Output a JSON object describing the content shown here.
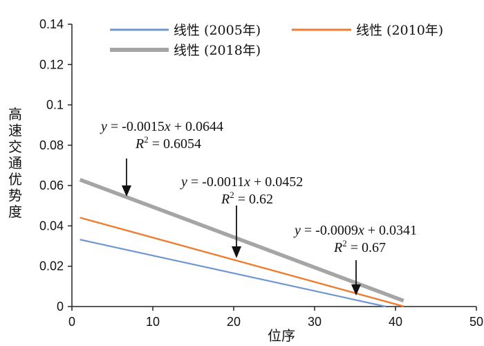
{
  "chart_data": {
    "type": "line",
    "xlabel": "位序",
    "ylabel": "高速交通优势度",
    "xlim": [
      0,
      50
    ],
    "ylim": [
      0,
      0.14
    ],
    "x_ticks": [
      "0",
      "10",
      "20",
      "30",
      "40",
      "50"
    ],
    "y_ticks": [
      "0",
      "0.02",
      "0.04",
      "0.06",
      "0.08",
      "0.1",
      "0.12",
      "0.14"
    ],
    "grid": false,
    "legend_position": "top",
    "series": [
      {
        "name": "线性 (2005年)",
        "color": "#6f96cf",
        "slope": -0.0009,
        "intercept": 0.0341,
        "x": [
          1,
          38.8
        ],
        "equation": "y = -0.0009x + 0.0341",
        "r2": "R2 = 0.67"
      },
      {
        "name": "线性 (2010年)",
        "color": "#ed7d31",
        "slope": -0.0011,
        "intercept": 0.0452,
        "x": [
          1,
          41
        ],
        "equation": "y = -0.0011x + 0.0452",
        "r2": "R2 = 0.62"
      },
      {
        "name": "线性 (2018年)",
        "color": "#a5a5a5",
        "slope": -0.0015,
        "intercept": 0.0644,
        "x": [
          1,
          41
        ],
        "equation": "y = -0.0015x + 0.0644",
        "r2": "R2 = 0.6054"
      }
    ]
  }
}
